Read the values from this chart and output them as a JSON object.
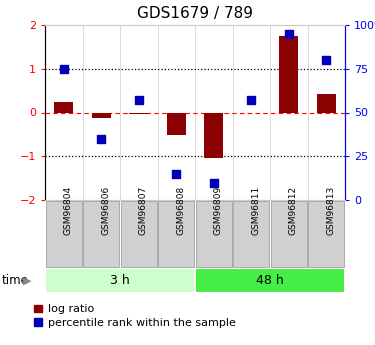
{
  "title": "GDS1679 / 789",
  "samples": [
    "GSM96804",
    "GSM96806",
    "GSM96807",
    "GSM96808",
    "GSM96809",
    "GSM96811",
    "GSM96812",
    "GSM96813"
  ],
  "log_ratio": [
    0.25,
    -0.12,
    -0.04,
    -0.52,
    -1.05,
    0.0,
    1.75,
    0.42
  ],
  "percentile_rank": [
    75,
    35,
    57,
    15,
    10,
    57,
    95,
    80
  ],
  "groups": [
    {
      "label": "3 h",
      "start": 0,
      "end": 4,
      "color": "#ccffcc"
    },
    {
      "label": "48 h",
      "start": 4,
      "end": 8,
      "color": "#44ee44"
    }
  ],
  "bar_color": "#8B0000",
  "dot_color": "#0000BB",
  "ylim_left": [
    -2,
    2
  ],
  "ylim_right": [
    0,
    100
  ],
  "yticks_left": [
    -2,
    -1,
    0,
    1,
    2
  ],
  "yticks_right": [
    0,
    25,
    50,
    75,
    100
  ],
  "ytick_labels_right": [
    "0",
    "25",
    "50",
    "75",
    "100%"
  ],
  "legend_labels": [
    "log ratio",
    "percentile rank within the sample"
  ],
  "time_label": "time",
  "bar_width": 0.5,
  "dot_size": 40,
  "sample_box_color": "#d0d0d0",
  "sample_box_edgecolor": "#aaaaaa"
}
